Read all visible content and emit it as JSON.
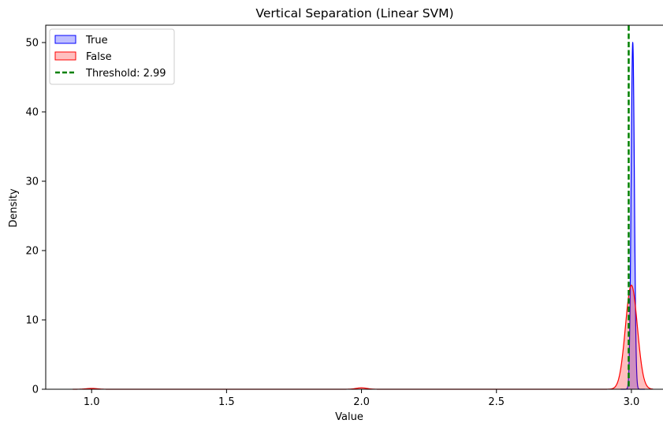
{
  "chart_data": {
    "type": "area",
    "title": "Vertical Separation (Linear SVM)",
    "xlabel": "Value",
    "ylabel": "Density",
    "xlim": [
      0.83,
      3.12
    ],
    "ylim": [
      0,
      52.5
    ],
    "xticks": [
      1.0,
      1.5,
      2.0,
      2.5,
      3.0
    ],
    "xtick_labels": [
      "1.0",
      "1.5",
      "2.0",
      "2.5",
      "3.0"
    ],
    "yticks": [
      0,
      10,
      20,
      30,
      40,
      50
    ],
    "ytick_labels": [
      "0",
      "10",
      "20",
      "30",
      "40",
      "50"
    ],
    "grid": false,
    "legend_position": "top-left",
    "series": [
      {
        "name": "True",
        "color": "#0000ff",
        "fill": "#0000ff",
        "peaks": [
          {
            "center": 3.005,
            "height": 50.0,
            "width": 0.006
          }
        ],
        "support": [
          2.96,
          3.05
        ]
      },
      {
        "name": "False",
        "color": "#ff0000",
        "fill": "#ff0000",
        "peaks": [
          {
            "center": 3.0,
            "height": 15.0,
            "width": 0.022
          },
          {
            "center": 2.0,
            "height": 0.2,
            "width": 0.02
          },
          {
            "center": 1.0,
            "height": 0.12,
            "width": 0.02
          }
        ],
        "support": [
          0.93,
          3.08
        ]
      }
    ],
    "threshold": {
      "label": "Threshold: 2.99",
      "value": 2.99,
      "color": "#008000"
    }
  }
}
